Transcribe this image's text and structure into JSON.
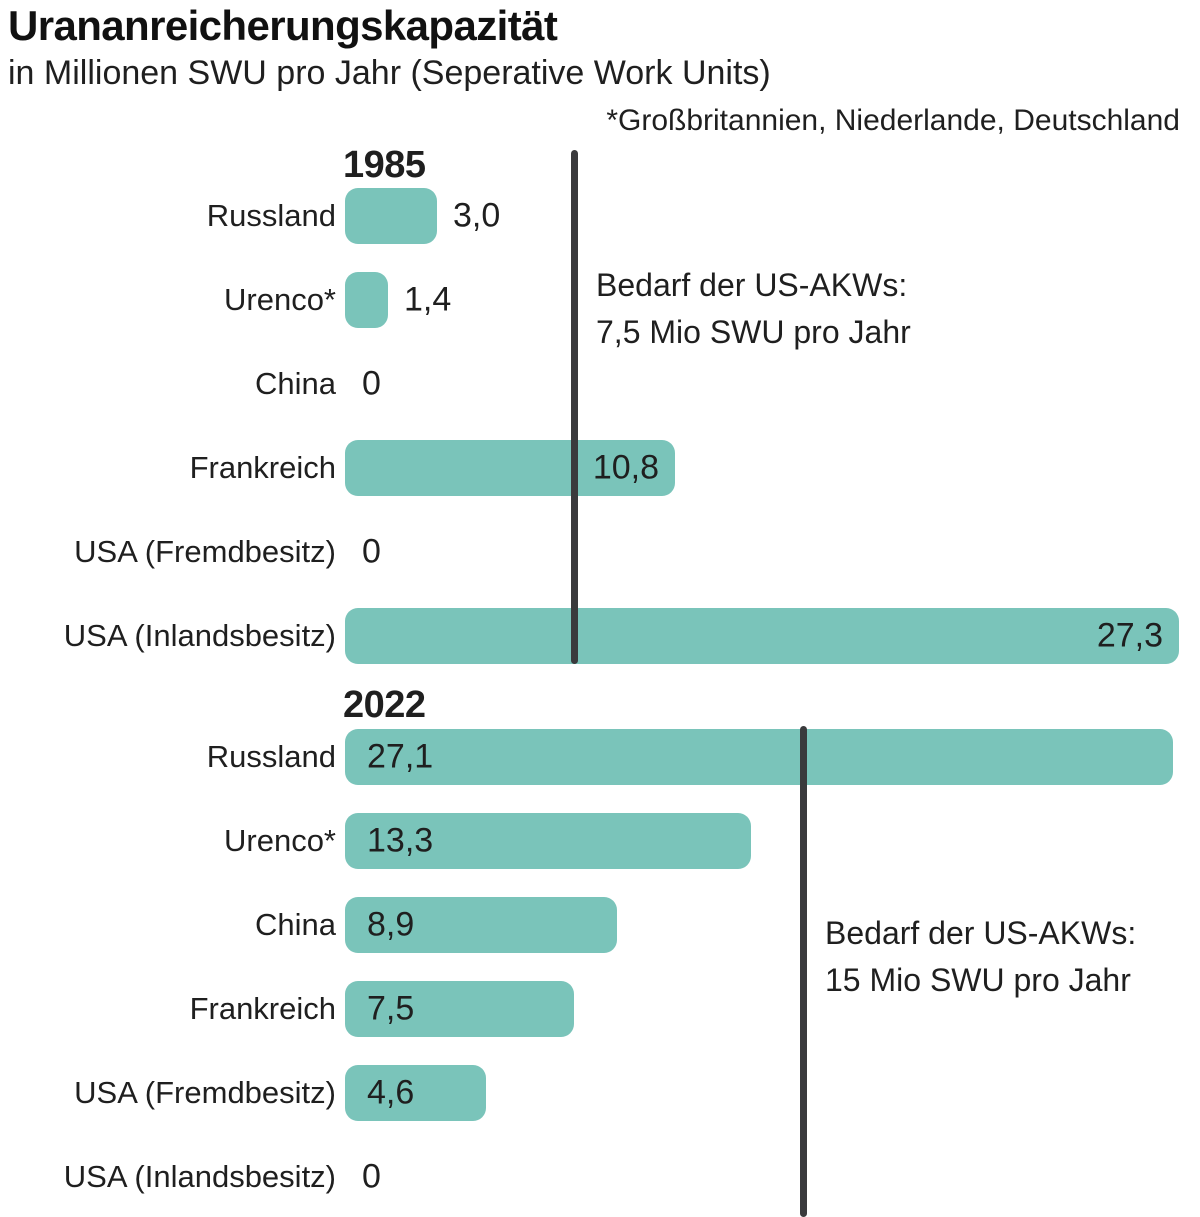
{
  "chart_data": {
    "type": "bar",
    "orientation": "horizontal",
    "title": "Urananreicherungskapazität",
    "subtitle": "in Millionen SWU pro Jahr (Seperative Work Units)",
    "footnote": "*Großbritannien, Niederlande, Deutschland",
    "value_unit": "Mio SWU pro Jahr",
    "xlim": [
      0,
      27.5
    ],
    "grid": false,
    "legend": false,
    "colors": {
      "bar": "#7ac4ba",
      "text": "#1f1f1f",
      "reference_line": "#3a3a3c"
    },
    "groups": [
      {
        "year": "1985",
        "reference": {
          "value": 7.5,
          "line1": "Bedarf der US-AKWs:",
          "line2": "7,5 Mio SWU pro Jahr"
        },
        "bars": [
          {
            "label": "Russland",
            "value": 3.0,
            "display": "3,0",
            "value_pos": "outside-right"
          },
          {
            "label": "Urenco*",
            "value": 1.4,
            "display": "1,4",
            "value_pos": "outside-right"
          },
          {
            "label": "China",
            "value": 0,
            "display": "0",
            "value_pos": "zero"
          },
          {
            "label": "Frankreich",
            "value": 10.8,
            "display": "10,8",
            "value_pos": "inside-right"
          },
          {
            "label": "USA (Fremdbesitz)",
            "value": 0,
            "display": "0",
            "value_pos": "zero"
          },
          {
            "label": "USA (Inlandsbesitz)",
            "value": 27.3,
            "display": "27,3",
            "value_pos": "inside-right"
          }
        ]
      },
      {
        "year": "2022",
        "reference": {
          "value": 15,
          "line1": "Bedarf der US-AKWs:",
          "line2": "15 Mio SWU pro Jahr"
        },
        "bars": [
          {
            "label": "Russland",
            "value": 27.1,
            "display": "27,1",
            "value_pos": "inside-left"
          },
          {
            "label": "Urenco*",
            "value": 13.3,
            "display": "13,3",
            "value_pos": "inside-left"
          },
          {
            "label": "China",
            "value": 8.9,
            "display": "8,9",
            "value_pos": "inside-left"
          },
          {
            "label": "Frankreich",
            "value": 7.5,
            "display": "7,5",
            "value_pos": "inside-left"
          },
          {
            "label": "USA (Fremdbesitz)",
            "value": 4.6,
            "display": "4,6",
            "value_pos": "inside-left"
          },
          {
            "label": "USA (Inlandsbesitz)",
            "value": 0,
            "display": "0",
            "value_pos": "zero"
          }
        ]
      }
    ]
  }
}
